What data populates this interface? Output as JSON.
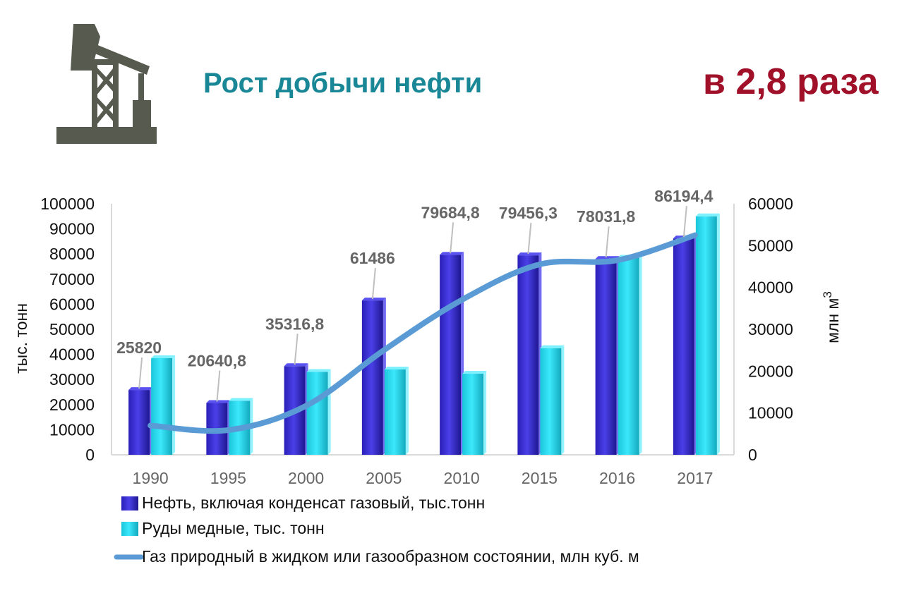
{
  "header": {
    "title": "Рост добычи нефти",
    "headline": "в 2,8 раза",
    "icon": "oil-pump-icon"
  },
  "colors": {
    "title": "#1a8796",
    "headline": "#a01028",
    "oil_bar": "#3a2fd6",
    "copper_bar": "#27d8ee",
    "gas_line": "#5b9bd5",
    "icon": "#575a4f"
  },
  "chart_data": {
    "type": "bar",
    "categories": [
      "1990",
      "1995",
      "2000",
      "2005",
      "2010",
      "2015",
      "2016",
      "2017"
    ],
    "series": [
      {
        "name": "Нефть, включая конденсат газовый, тыс.тонн",
        "type": "bar",
        "axis": "left",
        "values": [
          25820,
          20640.8,
          35316.8,
          61486,
          79684.8,
          79456.3,
          78031.8,
          86194.4
        ],
        "labels": [
          "25820",
          "20640,8",
          "35316,8",
          "61486",
          "79684,8",
          "79456,3",
          "78031,8",
          "86194,4"
        ]
      },
      {
        "name": "Руды медные, тыс. тонн",
        "type": "bar",
        "axis": "left",
        "values": [
          38500,
          21500,
          33000,
          34000,
          32300,
          42500,
          78500,
          95000
        ]
      },
      {
        "name": "Газ природный в жидком или газообразном состоянии, млн куб. м",
        "type": "line",
        "axis": "right",
        "values": [
          7000,
          5900,
          11700,
          25000,
          37000,
          45500,
          46500,
          52500
        ]
      }
    ],
    "ylabel": "тыс. тонн",
    "y2label_main": "млн м",
    "y2label_sup": "3",
    "ylim": [
      0,
      100000
    ],
    "y2lim": [
      0,
      60000
    ],
    "yticks": [
      "100000",
      "90000",
      "80000",
      "70000",
      "60000",
      "50000",
      "40000",
      "30000",
      "20000",
      "10000",
      "0"
    ],
    "y2ticks": [
      "60000",
      "50000",
      "40000",
      "30000",
      "20000",
      "10000",
      "0"
    ],
    "grid": false,
    "legend_position": "bottom"
  }
}
